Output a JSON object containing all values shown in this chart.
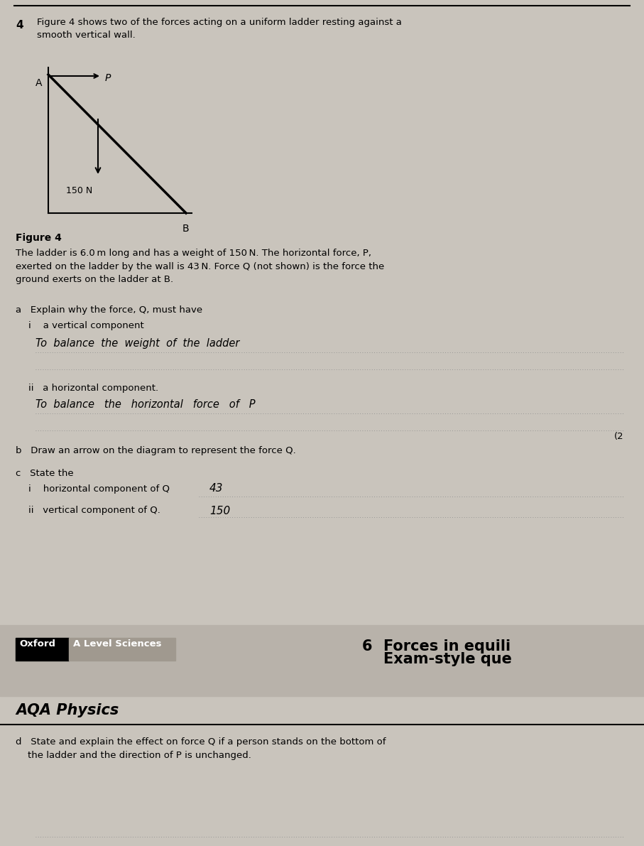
{
  "page_background": "#c9c4bc",
  "question_number": "4",
  "question_text": "Figure 4 shows two of the forces acting on a uniform ladder resting against a\nsmooth vertical wall.",
  "figure_caption": "Figure 4",
  "figure_desc_text": "The ladder is 6.0 m long and has a weight of 150 N. The horizontal force, P,\nexerted on the ladder by the wall is 43 N. Force Q (not shown) is the force the\nground exerts on the ladder at B.",
  "part_a_text": "a   Explain why the force, Q, must have",
  "part_a_i_text": "i    a vertical component",
  "handwritten_line1": "To  balance  the  weight  of  the  ladder",
  "part_a_ii_text": "ii   a horizontal component.",
  "handwritten_line2": "To  balance   the   horizontal   force   of   P",
  "mark_2": "(2",
  "part_b_text": "b   Draw an arrow on the diagram to represent the force Q.",
  "part_c_text": "c   State the",
  "part_c_i_text": "i    horizontal component of Q",
  "handwritten_c_i": "43",
  "part_c_ii_text": "ii   vertical component of Q.",
  "handwritten_c_ii": "150",
  "footer_oxford": "Oxford",
  "footer_level": "A Level Sciences",
  "footer_number": "6",
  "footer_topic": "Forces in equili",
  "footer_subtitle": "Exam-style que",
  "footer_aqa": "AQA Physics",
  "part_d_text": "d   State and explain the effect on force Q if a person stands on the bottom of\n    the ladder and the direction of P is unchanged."
}
